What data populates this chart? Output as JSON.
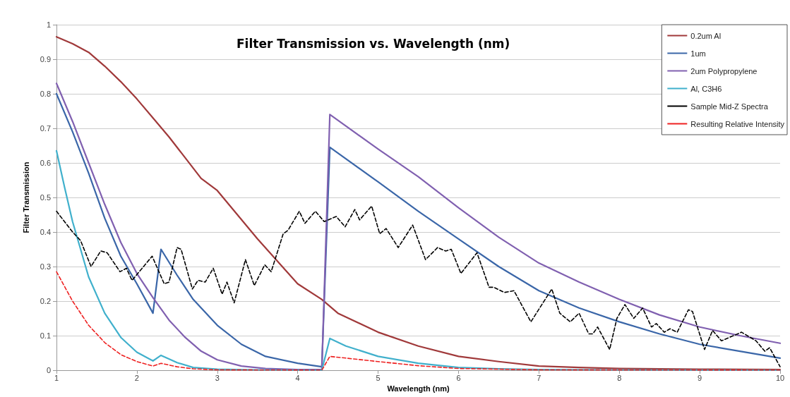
{
  "chart_data": {
    "type": "line",
    "title": "Filter Transmission vs. Wavelength (nm)",
    "xlabel": "Wavelength (nm)",
    "ylabel": "Filter Transmission",
    "xlim": [
      1,
      10
    ],
    "xticks": [
      1,
      2,
      3,
      4,
      5,
      6,
      7,
      8,
      9,
      10
    ],
    "ylim": [
      0,
      1
    ],
    "yticks": [
      0,
      0.1,
      0.2,
      0.3,
      0.4,
      0.5,
      0.6,
      0.7,
      0.8,
      0.9,
      1
    ],
    "grid": "y",
    "legend": "top right",
    "marker": "none",
    "series": [
      {
        "name": "0.2um Al",
        "color": "#a0393a",
        "line_style": "solid",
        "x": [
          1,
          1.2,
          1.4,
          1.6,
          1.8,
          2,
          2.2,
          2.4,
          2.6,
          2.8,
          3,
          3.5,
          4,
          4.3,
          4.5,
          5,
          5.5,
          6,
          6.5,
          7,
          7.5,
          8,
          9,
          10
        ],
        "values": [
          0.965,
          0.945,
          0.92,
          0.88,
          0.835,
          0.785,
          0.73,
          0.675,
          0.615,
          0.555,
          0.52,
          0.38,
          0.25,
          0.205,
          0.165,
          0.11,
          0.07,
          0.04,
          0.025,
          0.012,
          0.008,
          0.005,
          0.003,
          0.002
        ]
      },
      {
        "name": "1um",
        "color": "#3a66a8",
        "line_style": "solid",
        "x": [
          1,
          1.2,
          1.4,
          1.6,
          1.8,
          2,
          2.2,
          2.3,
          2.5,
          2.7,
          3,
          3.3,
          3.6,
          4,
          4.3,
          4.4,
          5,
          5.5,
          6,
          6.5,
          7,
          7.5,
          8,
          8.5,
          9,
          9.5,
          10
        ],
        "values": [
          0.8,
          0.69,
          0.57,
          0.44,
          0.33,
          0.25,
          0.165,
          0.35,
          0.275,
          0.205,
          0.13,
          0.075,
          0.04,
          0.02,
          0.01,
          0.645,
          0.545,
          0.46,
          0.38,
          0.3,
          0.23,
          0.18,
          0.14,
          0.105,
          0.075,
          0.055,
          0.035
        ]
      },
      {
        "name": "2um Polypropylene",
        "color": "#8060b0",
        "line_style": "solid",
        "x": [
          1,
          1.2,
          1.4,
          1.6,
          1.8,
          2,
          2.2,
          2.4,
          2.6,
          2.8,
          3,
          3.3,
          3.6,
          4,
          4.3,
          4.4,
          5,
          5.5,
          6,
          6.5,
          7,
          7.5,
          8,
          8.5,
          9,
          9.5,
          10
        ],
        "values": [
          0.83,
          0.72,
          0.6,
          0.48,
          0.37,
          0.28,
          0.21,
          0.145,
          0.095,
          0.055,
          0.03,
          0.012,
          0.005,
          0.002,
          0.002,
          0.74,
          0.64,
          0.56,
          0.47,
          0.385,
          0.31,
          0.255,
          0.205,
          0.16,
          0.125,
          0.1,
          0.078
        ]
      },
      {
        "name": "Al, C3H6",
        "color": "#40b0cc",
        "line_style": "solid",
        "x": [
          1,
          1.1,
          1.2,
          1.4,
          1.6,
          1.8,
          2,
          2.2,
          2.3,
          2.5,
          2.7,
          3,
          3.5,
          4.3,
          4.4,
          4.6,
          5,
          5.5,
          6,
          6.5,
          7,
          8,
          10
        ],
        "values": [
          0.635,
          0.53,
          0.43,
          0.27,
          0.165,
          0.095,
          0.052,
          0.027,
          0.043,
          0.022,
          0.008,
          0.003,
          0.001,
          0,
          0.092,
          0.07,
          0.04,
          0.02,
          0.008,
          0.004,
          0.002,
          0.001,
          0
        ]
      },
      {
        "name": "Sample Mid-Z Spectra",
        "color": "#000000",
        "line_style": "dashed",
        "x": [
          1,
          1.2,
          1.3,
          1.43,
          1.55,
          1.63,
          1.79,
          1.87,
          1.94,
          2.19,
          2.34,
          2.4,
          2.5,
          2.55,
          2.69,
          2.76,
          2.85,
          2.95,
          3.06,
          3.12,
          3.21,
          3.35,
          3.46,
          3.59,
          3.67,
          3.82,
          3.88,
          4.02,
          4.09,
          4.22,
          4.33,
          4.48,
          4.59,
          4.71,
          4.77,
          4.92,
          5.02,
          5.1,
          5.25,
          5.43,
          5.59,
          5.74,
          5.84,
          5.91,
          6.03,
          6.23,
          6.38,
          6.44,
          6.57,
          6.69,
          6.9,
          7.16,
          7.26,
          7.39,
          7.5,
          7.62,
          7.67,
          7.73,
          7.88,
          7.97,
          8.07,
          8.18,
          8.29,
          8.4,
          8.46,
          8.56,
          8.63,
          8.72,
          8.86,
          8.91,
          9.06,
          9.16,
          9.27,
          9.52,
          9.7,
          9.81,
          9.87,
          10
        ],
        "values": [
          0.46,
          0.4,
          0.375,
          0.3,
          0.345,
          0.34,
          0.285,
          0.295,
          0.26,
          0.33,
          0.25,
          0.255,
          0.355,
          0.35,
          0.235,
          0.26,
          0.255,
          0.295,
          0.22,
          0.255,
          0.195,
          0.32,
          0.245,
          0.305,
          0.285,
          0.395,
          0.405,
          0.46,
          0.425,
          0.46,
          0.43,
          0.445,
          0.415,
          0.465,
          0.435,
          0.475,
          0.395,
          0.41,
          0.355,
          0.42,
          0.32,
          0.355,
          0.345,
          0.35,
          0.28,
          0.34,
          0.24,
          0.24,
          0.225,
          0.23,
          0.14,
          0.235,
          0.165,
          0.14,
          0.165,
          0.105,
          0.105,
          0.125,
          0.06,
          0.15,
          0.19,
          0.15,
          0.18,
          0.125,
          0.135,
          0.11,
          0.12,
          0.11,
          0.175,
          0.17,
          0.06,
          0.115,
          0.085,
          0.11,
          0.085,
          0.055,
          0.065,
          0.01
        ]
      },
      {
        "name": "Resulting Relative Intensity",
        "color": "#ee2020",
        "line_style": "dashed",
        "x": [
          1,
          1.2,
          1.4,
          1.6,
          1.8,
          2,
          2.2,
          2.3,
          2.5,
          2.7,
          3,
          4.3,
          4.4,
          5,
          5.5,
          6,
          7,
          10
        ],
        "values": [
          0.285,
          0.2,
          0.13,
          0.08,
          0.045,
          0.025,
          0.012,
          0.02,
          0.01,
          0.004,
          0.001,
          0,
          0.04,
          0.025,
          0.013,
          0.005,
          0.001,
          0
        ]
      }
    ]
  }
}
